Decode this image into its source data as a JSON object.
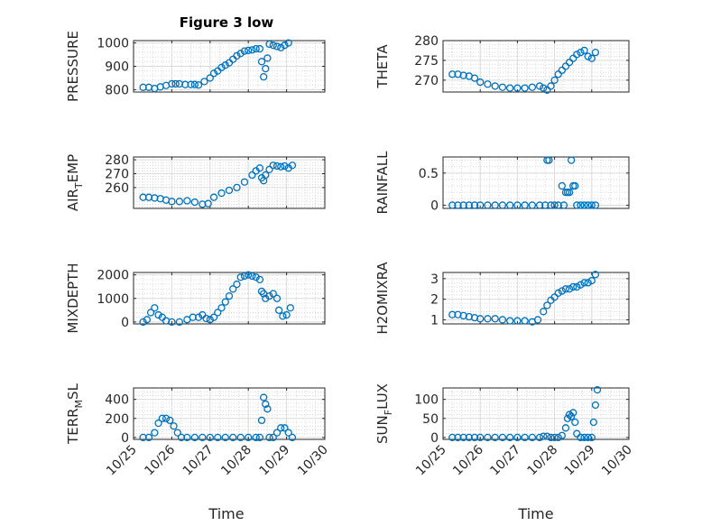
{
  "figure": {
    "title": "Figure 3 low",
    "xlabel": "Time"
  },
  "chart_data": [
    {
      "type": "scatter",
      "ylabel": "PRESSURE",
      "ylim": [
        790,
        1010
      ],
      "yticks": [
        800,
        900,
        1000
      ],
      "xlim": [
        0,
        5
      ],
      "xticks": [
        0,
        1,
        2,
        3,
        4,
        5
      ],
      "xticklabels": [
        "",
        "",
        "",
        "",
        "",
        ""
      ],
      "marker_color": "#0072BD",
      "grid": true,
      "series": [
        {
          "x": [
            0.25,
            0.4,
            0.55,
            0.7,
            0.85,
            1.0,
            1.1,
            1.2,
            1.35,
            1.5,
            1.6,
            1.7,
            1.85,
            2.0,
            2.1,
            2.2,
            2.3,
            2.4,
            2.5,
            2.6,
            2.7,
            2.8,
            2.9,
            3.0,
            3.1,
            3.2,
            3.3,
            3.35,
            3.4,
            3.45,
            3.5,
            3.55,
            3.65,
            3.75,
            3.85,
            3.95,
            4.05
          ],
          "y": [
            810,
            810,
            805,
            812,
            818,
            825,
            825,
            825,
            822,
            822,
            822,
            820,
            835,
            850,
            870,
            880,
            895,
            905,
            915,
            930,
            945,
            955,
            965,
            968,
            970,
            975,
            975,
            920,
            855,
            890,
            935,
            995,
            990,
            985,
            980,
            990,
            1000
          ]
        }
      ]
    },
    {
      "type": "scatter",
      "ylabel": "THETA",
      "ylim": [
        267,
        280
      ],
      "yticks": [
        270,
        275,
        280
      ],
      "xlim": [
        0,
        5
      ],
      "xticks": [
        0,
        1,
        2,
        3,
        4,
        5
      ],
      "xticklabels": [
        "",
        "",
        "",
        "",
        "",
        ""
      ],
      "marker_color": "#0072BD",
      "grid": true,
      "series": [
        {
          "x": [
            0.25,
            0.4,
            0.55,
            0.7,
            0.85,
            1.0,
            1.2,
            1.4,
            1.6,
            1.8,
            2.0,
            2.2,
            2.4,
            2.6,
            2.7,
            2.8,
            2.9,
            3.0,
            3.1,
            3.2,
            3.3,
            3.4,
            3.5,
            3.6,
            3.7,
            3.8,
            3.9,
            4.0,
            4.1
          ],
          "y": [
            271.5,
            271.5,
            271.2,
            271,
            270.5,
            269.5,
            269,
            268.5,
            268.2,
            268,
            268,
            268,
            268.2,
            268.5,
            268,
            267.5,
            268.5,
            270,
            271.5,
            272.5,
            273.5,
            274.5,
            275.5,
            276.5,
            277,
            277.5,
            276,
            275.5,
            277
          ]
        }
      ]
    },
    {
      "type": "scatter",
      "ylabel": "AIR_TEMP",
      "ylim": [
        245,
        282
      ],
      "yticks": [
        260,
        270,
        280
      ],
      "xlim": [
        0,
        5
      ],
      "xticks": [
        0,
        1,
        2,
        3,
        4,
        5
      ],
      "xticklabels": [
        "",
        "",
        "",
        "",
        "",
        ""
      ],
      "marker_color": "#0072BD",
      "grid": true,
      "series": [
        {
          "x": [
            0.25,
            0.4,
            0.55,
            0.7,
            0.85,
            1.0,
            1.2,
            1.4,
            1.6,
            1.8,
            1.95,
            2.1,
            2.3,
            2.5,
            2.7,
            2.9,
            3.1,
            3.2,
            3.3,
            3.35,
            3.4,
            3.45,
            3.55,
            3.65,
            3.75,
            3.85,
            3.95,
            4.05,
            4.15
          ],
          "y": [
            253,
            253,
            252.5,
            252,
            251,
            250,
            250,
            250.5,
            249.5,
            248,
            248.5,
            253,
            256,
            258,
            260,
            264,
            269,
            272,
            274,
            267,
            265,
            269,
            273,
            276,
            275.5,
            275,
            275.5,
            274,
            276
          ]
        }
      ]
    },
    {
      "type": "scatter",
      "ylabel": "RAINFALL",
      "ylim": [
        -0.05,
        0.75
      ],
      "yticks": [
        0,
        0.5
      ],
      "xlim": [
        0,
        5
      ],
      "xticks": [
        0,
        1,
        2,
        3,
        4,
        5
      ],
      "xticklabels": [
        "",
        "",
        "",
        "",
        "",
        ""
      ],
      "marker_color": "#0072BD",
      "grid": true,
      "series": [
        {
          "x": [
            0.25,
            0.4,
            0.55,
            0.7,
            0.85,
            1.0,
            1.2,
            1.4,
            1.6,
            1.8,
            2.0,
            2.2,
            2.4,
            2.6,
            2.75,
            2.8,
            2.85,
            2.9,
            3.0,
            3.1,
            3.2,
            3.25,
            3.3,
            3.35,
            3.4,
            3.45,
            3.5,
            3.55,
            3.6,
            3.7,
            3.8,
            3.9,
            4.0,
            4.1
          ],
          "y": [
            0,
            0,
            0,
            0,
            0,
            0,
            0,
            0,
            0,
            0,
            0,
            0,
            0,
            0,
            0,
            0.7,
            0.7,
            0,
            0,
            0,
            0.3,
            0,
            0.2,
            0.2,
            0.2,
            0.7,
            0.3,
            0.3,
            0,
            0,
            0,
            0,
            0,
            0
          ]
        }
      ]
    },
    {
      "type": "scatter",
      "ylabel": "MIXDEPTH",
      "ylim": [
        -80,
        2100
      ],
      "yticks": [
        0,
        1000,
        2000
      ],
      "xlim": [
        0,
        5
      ],
      "xticks": [
        0,
        1,
        2,
        3,
        4,
        5
      ],
      "xticklabels": [
        "",
        "",
        "",
        "",
        "",
        ""
      ],
      "marker_color": "#0072BD",
      "grid": true,
      "series": [
        {
          "x": [
            0.25,
            0.35,
            0.45,
            0.55,
            0.65,
            0.75,
            0.85,
            1.0,
            1.2,
            1.4,
            1.55,
            1.7,
            1.8,
            1.9,
            2.0,
            2.1,
            2.2,
            2.3,
            2.4,
            2.5,
            2.6,
            2.7,
            2.8,
            2.9,
            3.0,
            3.1,
            3.2,
            3.3,
            3.35,
            3.4,
            3.45,
            3.55,
            3.65,
            3.75,
            3.8,
            3.9,
            4.0,
            4.1
          ],
          "y": [
            0,
            100,
            400,
            600,
            300,
            200,
            50,
            0,
            0,
            100,
            200,
            200,
            300,
            150,
            100,
            200,
            400,
            600,
            850,
            1100,
            1400,
            1600,
            1900,
            1950,
            2000,
            1950,
            1900,
            1800,
            1300,
            1200,
            1000,
            1100,
            1200,
            1000,
            500,
            250,
            300,
            600
          ]
        }
      ]
    },
    {
      "type": "scatter",
      "ylabel": "H2OMIXRA",
      "ylim": [
        0.8,
        3.3
      ],
      "yticks": [
        1,
        2,
        3
      ],
      "xlim": [
        0,
        5
      ],
      "xticks": [
        0,
        1,
        2,
        3,
        4,
        5
      ],
      "xticklabels": [
        "",
        "",
        "",
        "",
        "",
        ""
      ],
      "marker_color": "#0072BD",
      "grid": true,
      "series": [
        {
          "x": [
            0.25,
            0.4,
            0.55,
            0.7,
            0.85,
            1.0,
            1.2,
            1.4,
            1.6,
            1.8,
            2.0,
            2.2,
            2.4,
            2.55,
            2.7,
            2.8,
            2.9,
            3.0,
            3.1,
            3.2,
            3.3,
            3.4,
            3.5,
            3.6,
            3.7,
            3.8,
            3.9,
            4.0,
            4.1
          ],
          "y": [
            1.25,
            1.25,
            1.2,
            1.15,
            1.1,
            1.05,
            1.05,
            1.05,
            1.0,
            0.95,
            0.95,
            0.95,
            0.9,
            1.0,
            1.4,
            1.7,
            1.95,
            2.1,
            2.3,
            2.4,
            2.5,
            2.5,
            2.6,
            2.6,
            2.7,
            2.8,
            2.8,
            2.9,
            3.2
          ]
        }
      ]
    },
    {
      "type": "scatter",
      "ylabel": "TERR_MSL",
      "ylim": [
        -20,
        520
      ],
      "yticks": [
        0,
        200,
        400
      ],
      "xlim": [
        0,
        5
      ],
      "xticks": [
        0,
        1,
        2,
        3,
        4,
        5
      ],
      "xticklabels": [
        "10/25",
        "10/26",
        "10/27",
        "10/28",
        "10/29",
        "10/30"
      ],
      "marker_color": "#0072BD",
      "grid": true,
      "series": [
        {
          "x": [
            0.25,
            0.4,
            0.55,
            0.65,
            0.75,
            0.85,
            0.95,
            1.05,
            1.15,
            1.25,
            1.4,
            1.6,
            1.8,
            2.0,
            2.2,
            2.4,
            2.6,
            2.8,
            3.0,
            3.2,
            3.3,
            3.35,
            3.4,
            3.45,
            3.5,
            3.55,
            3.65,
            3.75,
            3.85,
            3.95,
            4.05,
            4.15
          ],
          "y": [
            0,
            0,
            50,
            150,
            200,
            200,
            180,
            120,
            50,
            0,
            0,
            0,
            0,
            0,
            0,
            0,
            0,
            0,
            0,
            0,
            0,
            180,
            420,
            350,
            300,
            0,
            0,
            50,
            100,
            100,
            50,
            0
          ]
        }
      ]
    },
    {
      "type": "scatter",
      "ylabel": "SUN_FLUX",
      "ylim": [
        -5,
        130
      ],
      "yticks": [
        0,
        50,
        100
      ],
      "xlim": [
        0,
        5
      ],
      "xticks": [
        0,
        1,
        2,
        3,
        4,
        5
      ],
      "xticklabels": [
        "10/25",
        "10/26",
        "10/27",
        "10/28",
        "10/29",
        "10/30"
      ],
      "marker_color": "#0072BD",
      "grid": true,
      "series": [
        {
          "x": [
            0.25,
            0.4,
            0.55,
            0.7,
            0.85,
            1.0,
            1.2,
            1.4,
            1.6,
            1.8,
            2.0,
            2.2,
            2.4,
            2.6,
            2.7,
            2.8,
            2.9,
            3.0,
            3.1,
            3.2,
            3.3,
            3.35,
            3.4,
            3.45,
            3.5,
            3.55,
            3.6,
            3.7,
            3.8,
            3.9,
            4.0,
            4.05,
            4.1,
            4.15
          ],
          "y": [
            0,
            0,
            0,
            0,
            0,
            0,
            0,
            0,
            0,
            0,
            0,
            0,
            0,
            0,
            3,
            3,
            0,
            0,
            0,
            5,
            25,
            50,
            60,
            55,
            65,
            40,
            10,
            0,
            0,
            0,
            0,
            40,
            85,
            125
          ]
        }
      ]
    }
  ]
}
